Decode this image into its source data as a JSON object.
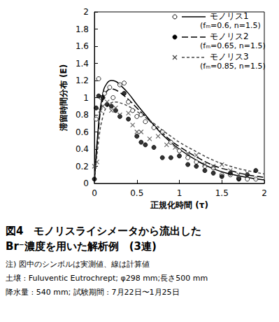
{
  "chart_data": {
    "type": "scatter",
    "title": "図4　モノリスライシメータから流出した\nBr⁻濃度を用いた解析例　(3連)",
    "annotations": [
      "注) 図中のシンボルは実測値、線は計算値",
      "土壌 : Fuluventic Eutrochrept; φ298 mm;長さ500 mm",
      "降水量 : 540 mm; 試験期間 : 7月22日〜1月25日"
    ],
    "xlabel": "正規化時間 (τ)",
    "ylabel": "滞留時間分布 (E)",
    "xlim": [
      0,
      2
    ],
    "xticks": [
      0,
      0.5,
      1,
      1.5,
      2
    ],
    "ylim": [
      0,
      2
    ],
    "yticks": [
      0,
      0.2,
      0.4,
      0.6,
      0.8,
      1,
      1.2,
      1.4,
      1.6,
      1.8,
      2
    ],
    "grid": false,
    "legend": "upper right",
    "series": [
      {
        "name": "モノリス1",
        "note": "(fₘ=0.6, n=1.5)",
        "color": "#000000",
        "marker": "circle_open",
        "line_style": "solid",
        "x": [
          0.02,
          0.05,
          0.08,
          0.12,
          0.18,
          0.22,
          0.3,
          0.35,
          0.4,
          0.45,
          0.5,
          0.55,
          0.6,
          0.7,
          0.8,
          0.9,
          1.0,
          1.1,
          1.2,
          1.3,
          1.4,
          1.5,
          1.6,
          1.7,
          1.8,
          1.9
        ],
        "values": [
          0.75,
          1.22,
          1.0,
          1.05,
          1.12,
          1.0,
          1.15,
          1.17,
          0.95,
          0.85,
          0.78,
          0.8,
          0.72,
          0.65,
          0.6,
          0.48,
          0.38,
          0.3,
          0.25,
          0.2,
          0.18,
          0.1,
          0.1,
          0.06,
          0.05,
          0.05
        ],
        "fit_x": [
          0,
          0.05,
          0.1,
          0.15,
          0.2,
          0.25,
          0.3,
          0.4,
          0.5,
          0.6,
          0.7,
          0.8,
          0.9,
          1.0,
          1.2,
          1.4,
          1.6,
          1.8,
          2.0
        ],
        "fit_values": [
          0,
          0.7,
          1.05,
          1.17,
          1.2,
          1.19,
          1.15,
          1.05,
          0.92,
          0.8,
          0.68,
          0.57,
          0.48,
          0.4,
          0.27,
          0.17,
          0.11,
          0.07,
          0.04
        ]
      },
      {
        "name": "モノリス2",
        "note": "(fₘ=0.65, n=1.5)",
        "color": "#000000",
        "marker": "circle",
        "line_style": "long_dash",
        "x": [
          0.0,
          0.02,
          0.05,
          0.1,
          0.15,
          0.2,
          0.25,
          0.3,
          0.35,
          0.4,
          0.5,
          0.55,
          0.6,
          0.7,
          0.8,
          0.9,
          1.0,
          1.1,
          1.2,
          1.3,
          1.4,
          1.5,
          1.6,
          1.7,
          1.8,
          1.9
        ],
        "values": [
          0.05,
          0.88,
          1.02,
          1.0,
          0.92,
          0.9,
          0.85,
          0.78,
          1.05,
          0.75,
          0.55,
          0.48,
          0.45,
          0.42,
          0.3,
          0.3,
          0.32,
          0.22,
          0.2,
          0.15,
          0.12,
          0.08,
          0.12,
          0.05,
          0.1,
          0.15
        ],
        "fit_x": [
          0,
          0.05,
          0.1,
          0.15,
          0.2,
          0.25,
          0.3,
          0.4,
          0.5,
          0.6,
          0.7,
          0.8,
          0.9,
          1.0,
          1.2,
          1.4,
          1.6,
          1.8,
          2.0
        ],
        "fit_values": [
          0,
          0.65,
          0.98,
          1.08,
          1.1,
          1.09,
          1.06,
          0.98,
          0.88,
          0.78,
          0.68,
          0.59,
          0.5,
          0.43,
          0.31,
          0.21,
          0.15,
          0.1,
          0.07
        ]
      },
      {
        "name": "モノリス3",
        "note": "(fₘ=0.85, n=1.5)",
        "color": "#444444",
        "marker": "cross",
        "line_style": "dash",
        "x": [
          0.0,
          0.03,
          0.07,
          0.1,
          0.15,
          0.2,
          0.25,
          0.3,
          0.4,
          0.45,
          0.5,
          0.55,
          0.65,
          0.75,
          0.85,
          0.95,
          1.1,
          1.2,
          1.3,
          1.4,
          1.5,
          1.6,
          1.7,
          1.8
        ],
        "values": [
          0.2,
          0.25,
          0.85,
          0.9,
          0.95,
          0.85,
          0.88,
          0.8,
          0.82,
          0.68,
          0.6,
          0.6,
          0.52,
          0.55,
          0.45,
          0.42,
          0.35,
          0.33,
          0.22,
          0.2,
          0.22,
          0.15,
          0.1,
          0.12
        ],
        "fit_x": [
          0,
          0.05,
          0.1,
          0.15,
          0.2,
          0.25,
          0.3,
          0.4,
          0.5,
          0.6,
          0.7,
          0.8,
          0.9,
          1.0,
          1.2,
          1.4,
          1.6,
          1.8,
          2.0
        ],
        "fit_values": [
          0,
          0.5,
          0.78,
          0.9,
          0.94,
          0.95,
          0.94,
          0.9,
          0.84,
          0.77,
          0.7,
          0.62,
          0.55,
          0.48,
          0.37,
          0.27,
          0.2,
          0.15,
          0.11
        ]
      }
    ]
  }
}
